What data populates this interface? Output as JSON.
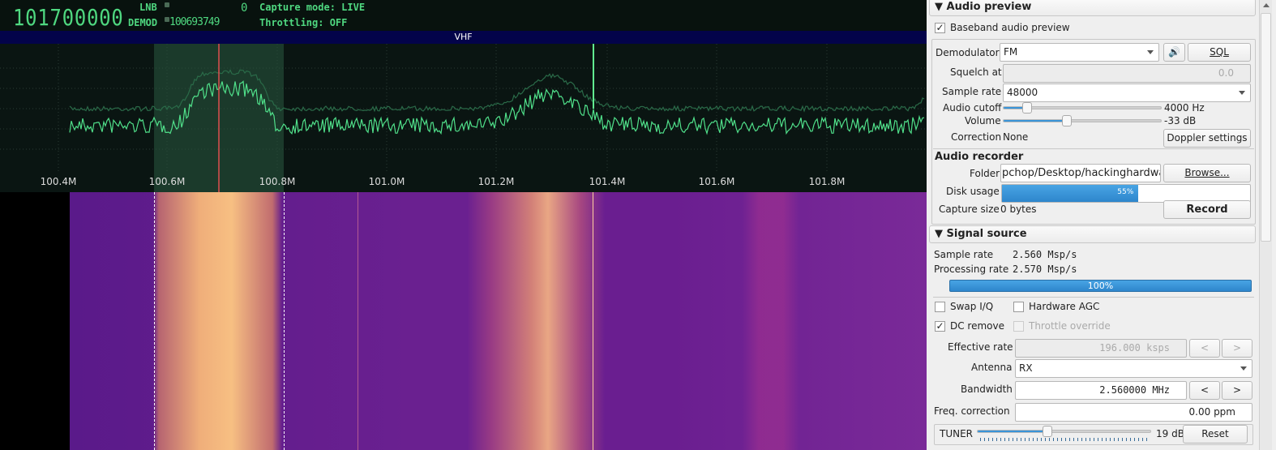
{
  "header": {
    "frequency": "101700000",
    "lnb_label": "LNB",
    "lnb_value": "0",
    "demod_label": "DEMOD",
    "demod_value": "100693749",
    "capture_mode": "Capture mode: LIVE",
    "throttling": "Throttling: OFF"
  },
  "band": {
    "name": "VHF"
  },
  "spectrum": {
    "freq_ticks": [
      "100.4M",
      "100.6M",
      "100.8M",
      "101.0M",
      "101.2M",
      "101.4M",
      "101.6M",
      "101.8M"
    ],
    "trace_color": "#50e08a",
    "selection_color": "#2a5a40",
    "marker_color": "#e05050"
  },
  "audio_preview": {
    "title": "Audio preview",
    "baseband_label": "Baseband audio preview",
    "baseband_checked": true,
    "demodulator_label": "Demodulator",
    "demodulator": "FM",
    "speaker_icon": "speaker-icon",
    "sql_label": "SQL",
    "squelch_label": "Squelch at",
    "squelch_value": "0.0",
    "sample_rate_label": "Sample rate",
    "sample_rate": "48000",
    "cutoff_label": "Audio cutoff",
    "cutoff_value": "4000 Hz",
    "cutoff_level": 0.15,
    "volume_label": "Volume",
    "volume_value": "-33 dB",
    "volume_level": 0.4,
    "correction_label": "Correction",
    "correction_value": "None",
    "doppler_label": "Doppler settings"
  },
  "audio_recorder": {
    "title": "Audio recorder",
    "folder_label": "Folder",
    "folder_value": "pchop/Desktop/hackinghardware",
    "browse_label": "Browse...",
    "disk_label": "Disk usage",
    "disk_percent": "55%",
    "capture_label": "Capture size",
    "capture_value": "0 bytes",
    "record_label": "Record"
  },
  "signal_source": {
    "title": "Signal source",
    "sample_rate_label": "Sample rate",
    "sample_rate": "2.560 Msp/s",
    "processing_label": "Processing rate",
    "processing_rate": "2.570 Msp/s",
    "progress": "100%",
    "swap_iq": "Swap I/Q",
    "hw_agc": "Hardware AGC",
    "dc_remove": "DC remove",
    "throttle_override": "Throttle override",
    "effective_rate_label": "Effective rate",
    "effective_rate": "196.000 ksps",
    "prev": "<",
    "next": ">",
    "antenna_label": "Antenna",
    "antenna": "RX",
    "bandwidth_label": "Bandwidth",
    "bandwidth": "2.560000 MHz",
    "freq_corr_label": "Freq. correction",
    "freq_corr": "0.00 ppm",
    "tuner_label": "TUNER",
    "tuner_value": "19 dB",
    "tuner_level": 0.4,
    "reset_label": "Reset"
  }
}
